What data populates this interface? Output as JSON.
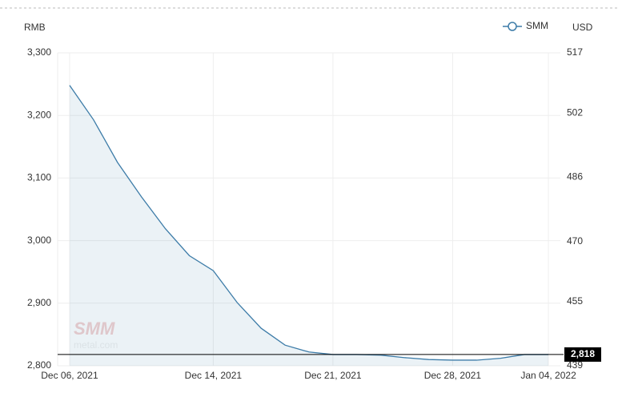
{
  "chart_data": {
    "type": "area",
    "legend": "SMM",
    "y_axis_label": "RMB",
    "y2_axis_label": "USD",
    "watermark": [
      "SMM",
      "metal.com"
    ],
    "categories": [
      "Dec 06, 2021",
      null,
      null,
      null,
      null,
      null,
      "Dec 14, 2021",
      null,
      null,
      null,
      null,
      "Dec 21, 2021",
      null,
      null,
      null,
      null,
      "Dec 28, 2021",
      null,
      null,
      null,
      "Jan 04, 2022"
    ],
    "series": [
      {
        "name": "SMM",
        "color": "#3d7ca8",
        "values": [
          3248,
          3193,
          3125,
          3070,
          3019,
          2976,
          2952,
          2901,
          2860,
          2833,
          2822,
          2818,
          2818,
          2817,
          2813,
          2810,
          2809,
          2809,
          2812,
          2818,
          2818
        ]
      }
    ],
    "ylim": [
      2800,
      3300
    ],
    "yticks": [
      {
        "value": 2800,
        "label": "2,800"
      },
      {
        "value": 2900,
        "label": "2,900"
      },
      {
        "value": 3000,
        "label": "3,000"
      },
      {
        "value": 3100,
        "label": "3,100"
      },
      {
        "value": 3200,
        "label": "3,200"
      },
      {
        "value": 3300,
        "label": "3,300"
      }
    ],
    "y2lim": [
      439,
      517
    ],
    "y2ticks": [
      439,
      455,
      470,
      486,
      502,
      517
    ],
    "current_value": {
      "value": 2818,
      "label": "2,818"
    },
    "grid": true
  }
}
